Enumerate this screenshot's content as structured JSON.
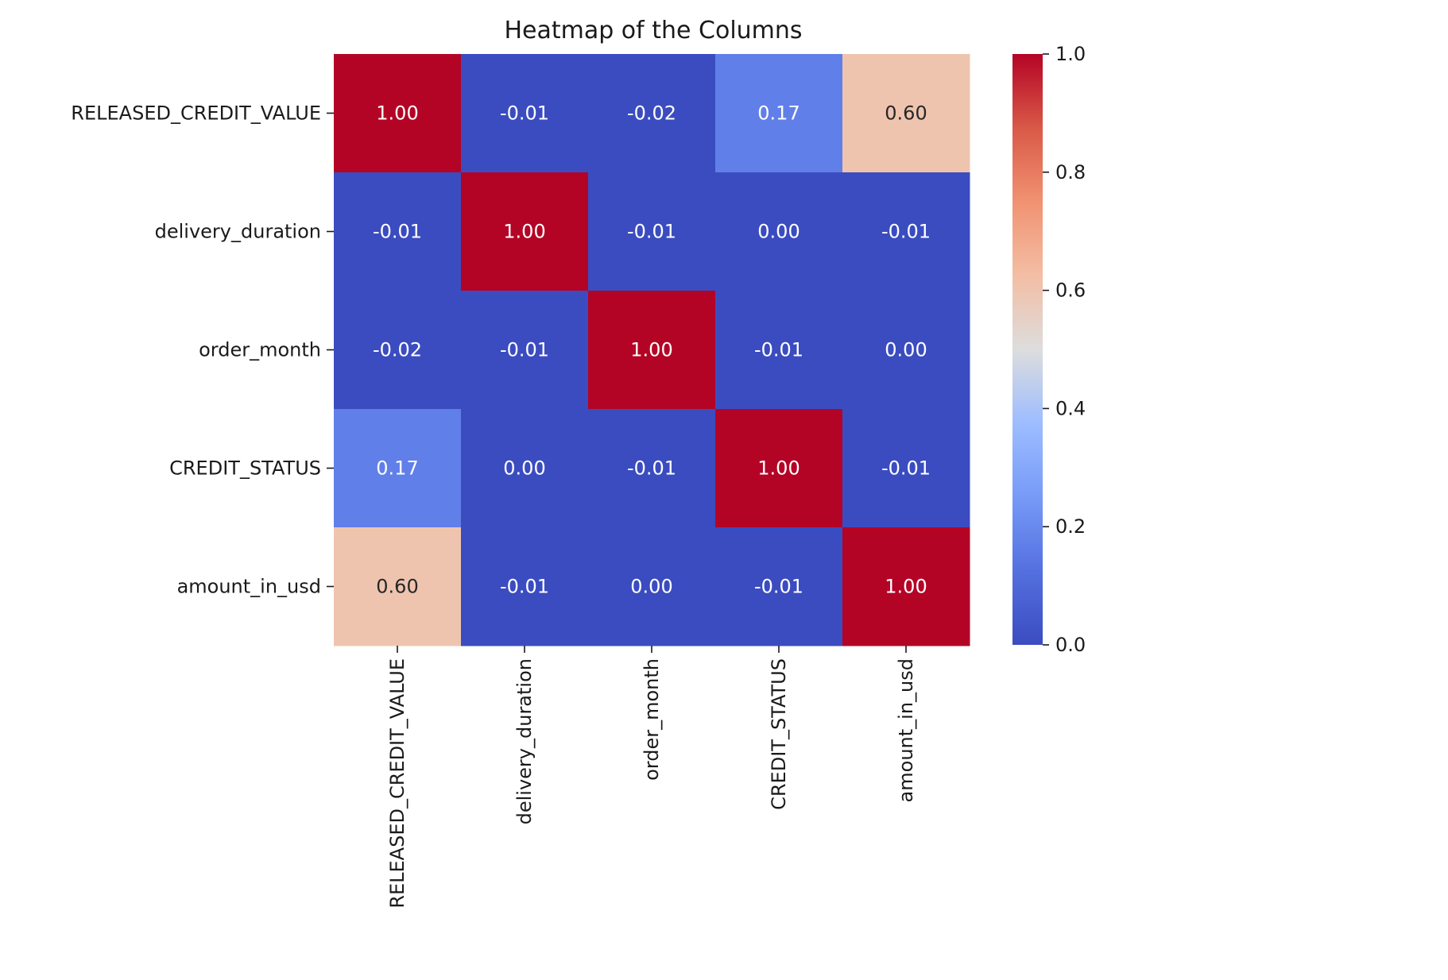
{
  "chart_data": {
    "type": "heatmap",
    "title": "Heatmap of the Columns",
    "xlabel": "",
    "ylabel": "",
    "row_labels": [
      "RELEASED_CREDIT_VALUE",
      "delivery_duration",
      "order_month",
      "CREDIT_STATUS",
      "amount_in_usd"
    ],
    "col_labels": [
      "RELEASED_CREDIT_VALUE",
      "delivery_duration",
      "order_month",
      "CREDIT_STATUS",
      "amount_in_usd"
    ],
    "values": [
      [
        1.0,
        -0.01,
        -0.02,
        0.17,
        0.6
      ],
      [
        -0.01,
        1.0,
        -0.01,
        0.0,
        -0.01
      ],
      [
        -0.02,
        -0.01,
        1.0,
        -0.01,
        0.0
      ],
      [
        0.17,
        0.0,
        -0.01,
        1.0,
        -0.01
      ],
      [
        0.6,
        -0.01,
        0.0,
        -0.01,
        1.0
      ]
    ],
    "annotation_format": "0.00",
    "colormap": "coolwarm",
    "colorbar": {
      "range": [
        0.0,
        1.0
      ],
      "ticks": [
        0.0,
        0.2,
        0.4,
        0.6,
        0.8,
        1.0
      ],
      "tick_labels": [
        "0.0",
        "0.2",
        "0.4",
        "0.6",
        "0.8",
        "1.0"
      ],
      "placement": "right"
    },
    "grid": false,
    "colors": {
      "low": "#3b4cc0",
      "mid": "#dddddd",
      "high": "#b40426"
    }
  }
}
